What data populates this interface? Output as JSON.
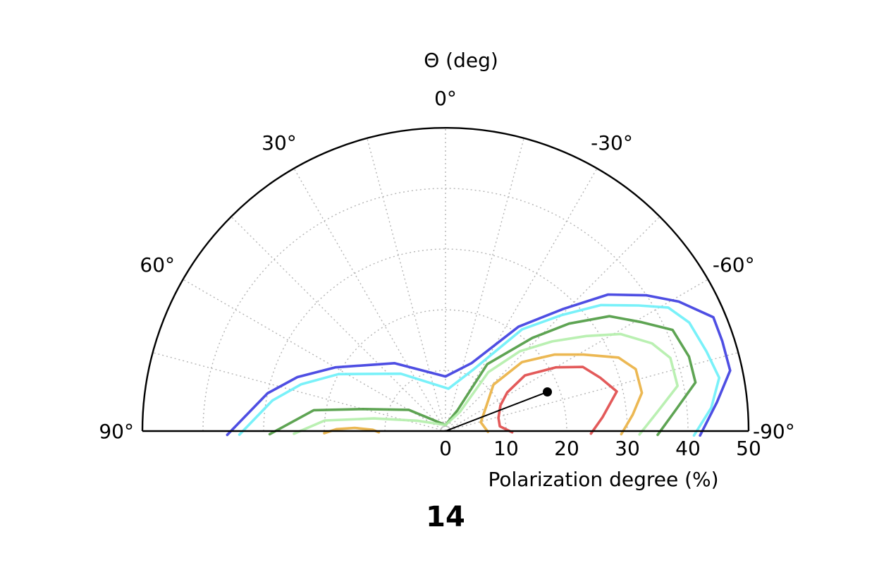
{
  "chart_data": {
    "type": "polar-contour",
    "projection": "half-polar",
    "title": "Θ (deg)",
    "xlabel": "Polarization degree (%)",
    "panel_label": "14",
    "angle_ticks": [
      "90°",
      "60°",
      "30°",
      "0°",
      "-30°",
      "-60°",
      "-90°"
    ],
    "angle_values": [
      90,
      60,
      30,
      0,
      -30,
      -60,
      -90
    ],
    "radial_ticks": [
      "0",
      "10",
      "20",
      "30",
      "40",
      "50"
    ],
    "radial_values": [
      0,
      10,
      20,
      30,
      40,
      50
    ],
    "rlim": [
      0,
      50
    ],
    "grid": "dotted",
    "best_fit": {
      "r": 18,
      "theta": -69
    },
    "contours": [
      {
        "color": "#3b3be0",
        "points": [
          [
            42,
            -91
          ],
          [
            45,
            -84
          ],
          [
            48,
            -78
          ],
          [
            48,
            -72
          ],
          [
            48,
            -67
          ],
          [
            44,
            -61
          ],
          [
            40,
            -56
          ],
          [
            35,
            -50
          ],
          [
            28,
            -44
          ],
          [
            21,
            -35
          ],
          [
            12,
            -21
          ],
          [
            9,
            0
          ],
          [
            14,
            37
          ],
          [
            21,
            60
          ],
          [
            26,
            70
          ],
          [
            30,
            78
          ],
          [
            36,
            91
          ]
        ]
      },
      {
        "color": "#6af0f8",
        "points": [
          [
            41,
            -91
          ],
          [
            44,
            -85
          ],
          [
            46,
            -79
          ],
          [
            45,
            -73
          ],
          [
            44,
            -66
          ],
          [
            42,
            -61
          ],
          [
            38,
            -57
          ],
          [
            33,
            -51
          ],
          [
            27,
            -45
          ],
          [
            21,
            -37
          ],
          [
            11,
            -24
          ],
          [
            7,
            -4
          ],
          [
            12,
            38
          ],
          [
            20,
            62
          ],
          [
            25,
            72
          ],
          [
            29,
            80
          ],
          [
            34,
            91
          ]
        ]
      },
      {
        "color": "#4c9a40",
        "points": [
          [
            35,
            -91
          ],
          [
            38,
            -85
          ],
          [
            42,
            -79
          ],
          [
            42,
            -73
          ],
          [
            41,
            -66
          ],
          [
            37,
            -61
          ],
          [
            33,
            -55
          ],
          [
            27,
            -49
          ],
          [
            21,
            -43
          ],
          [
            13,
            -32
          ],
          [
            4,
            -30
          ],
          [
            1,
            0
          ],
          [
            7,
            60
          ],
          [
            14,
            75
          ],
          [
            22,
            81
          ],
          [
            29,
            91
          ]
        ]
      },
      {
        "color": "#b2eeaa",
        "points": [
          [
            32,
            -91
          ],
          [
            35,
            -85
          ],
          [
            39,
            -79
          ],
          [
            39,
            -72
          ],
          [
            37,
            -67
          ],
          [
            33,
            -61
          ],
          [
            28,
            -56
          ],
          [
            23,
            -50
          ],
          [
            18,
            -43
          ],
          [
            12,
            -36
          ],
          [
            4,
            -37
          ],
          [
            1,
            0
          ],
          [
            5,
            70
          ],
          [
            12,
            80
          ],
          [
            20,
            85
          ],
          [
            25,
            91
          ]
        ]
      },
      {
        "color": "#eab040",
        "points": [
          [
            29,
            -91
          ],
          [
            31,
            -85
          ],
          [
            33,
            -79
          ],
          [
            33,
            -72
          ],
          [
            31,
            -67
          ],
          [
            26,
            -61
          ],
          [
            22,
            -55
          ],
          [
            17,
            -48
          ],
          [
            11,
            -46
          ],
          [
            8,
            -58
          ],
          [
            6,
            -76
          ],
          [
            7,
            -91
          ]
        ]
      },
      {
        "color": "#eab040",
        "points": [
          [
            20,
            91
          ],
          [
            18,
            89
          ],
          [
            15,
            88
          ],
          [
            12,
            89
          ],
          [
            11,
            91
          ]
        ]
      },
      {
        "color": "#e04848",
        "points": [
          [
            24,
            -91
          ],
          [
            26,
            -85
          ],
          [
            29,
            -77
          ],
          [
            27,
            -71
          ],
          [
            25,
            -65
          ],
          [
            21,
            -60
          ],
          [
            16,
            -55
          ],
          [
            12,
            -58
          ],
          [
            10,
            -65
          ],
          [
            9,
            -76
          ],
          [
            9,
            -85
          ],
          [
            11,
            -91
          ]
        ]
      }
    ]
  }
}
